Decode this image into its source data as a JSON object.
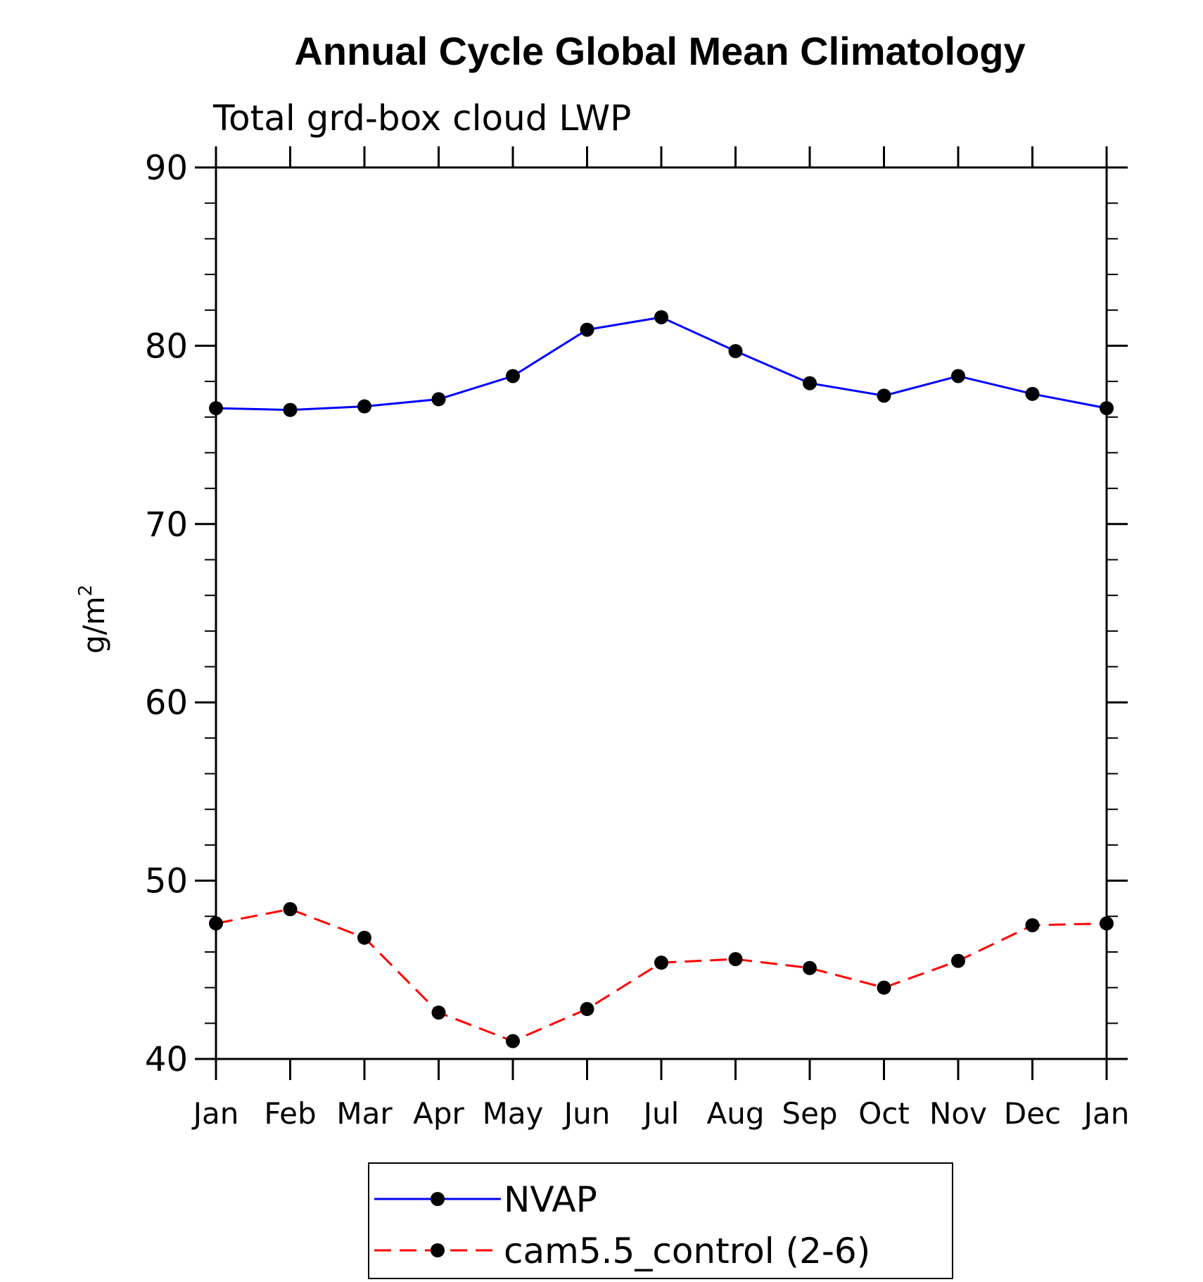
{
  "chart_data": {
    "type": "line",
    "title": "Annual Cycle Global Mean Climatology",
    "subtitle": "Total grd-box cloud LWP",
    "xlabel": "",
    "ylabel": "g/m",
    "ylabel_superscript": "2",
    "categories": [
      "Jan",
      "Feb",
      "Mar",
      "Apr",
      "May",
      "Jun",
      "Jul",
      "Aug",
      "Sep",
      "Oct",
      "Nov",
      "Dec",
      "Jan"
    ],
    "ylim": [
      40,
      90
    ],
    "y_ticks": [
      40,
      50,
      60,
      70,
      80,
      90
    ],
    "y_minor_step": 2,
    "grid": false,
    "legend_position": "bottom-center",
    "series": [
      {
        "name": "NVAP",
        "color": "#0000ff",
        "dash": "solid",
        "marker": "filled-circle",
        "values": [
          76.5,
          76.4,
          76.6,
          77.0,
          78.3,
          80.9,
          81.6,
          79.7,
          77.9,
          77.2,
          78.3,
          77.3,
          76.5
        ]
      },
      {
        "name": "cam5.5_control (2-6)",
        "color": "#ff0000",
        "dash": "dashed",
        "marker": "filled-circle",
        "values": [
          47.6,
          48.4,
          46.8,
          42.6,
          41.0,
          42.8,
          45.4,
          45.6,
          45.1,
          44.0,
          45.5,
          47.5,
          47.6
        ]
      }
    ]
  }
}
